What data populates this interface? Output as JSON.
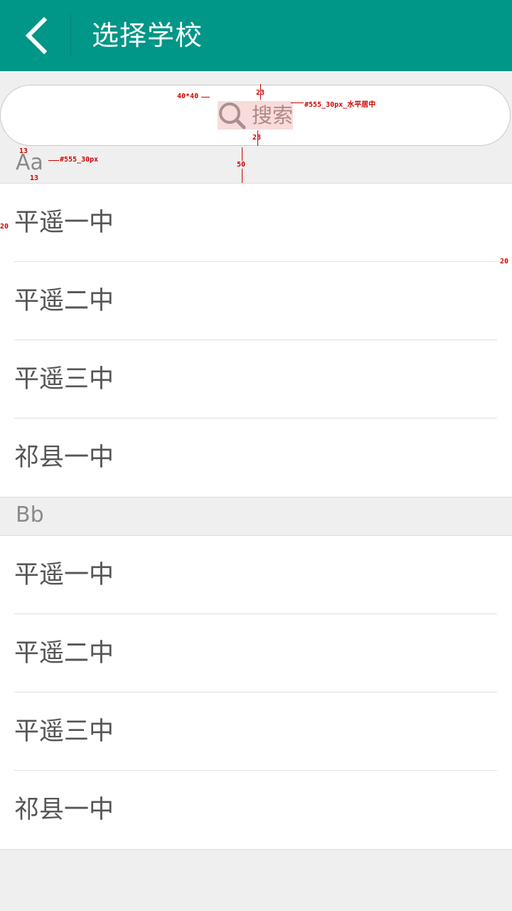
{
  "header": {
    "title": "选择学校",
    "back_icon": "chevron-left-icon"
  },
  "search": {
    "label": "搜索",
    "icon": "search-icon"
  },
  "annotations": {
    "icon_size": "40*40",
    "top_gap": "23",
    "bottom_gap": "23",
    "search_text_spec": "#555_30px_水平居中",
    "header_gap_top": "13",
    "header_gap_bottom": "13",
    "header_text_spec": "#555_30px",
    "header_height": "50",
    "left_margin": "20",
    "right_margin": "20"
  },
  "sections": [
    {
      "letter": "Aa",
      "items": [
        "平遥一中",
        "平遥二中",
        "平遥三中",
        "祁县一中"
      ]
    },
    {
      "letter": "Bb",
      "items": [
        "平遥一中",
        "平遥二中",
        "平遥三中",
        "祁县一中"
      ]
    }
  ],
  "colors": {
    "primary": "#009688",
    "text": "#555555",
    "section_text": "#8a8a8a",
    "background": "#efefef",
    "annotation": "#d00000"
  }
}
